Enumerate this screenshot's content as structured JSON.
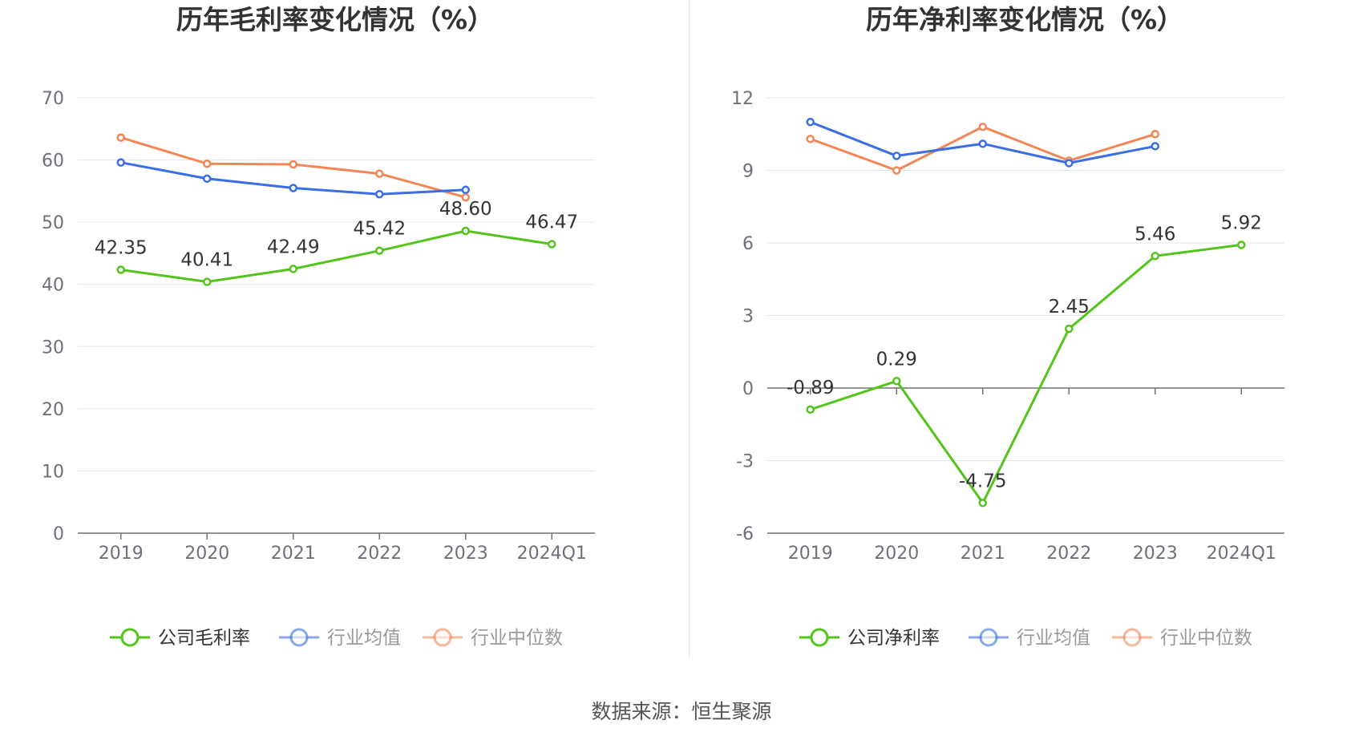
{
  "chart_data": [
    {
      "type": "line",
      "title": "历年毛利率变化情况（%）",
      "categories": [
        "2019",
        "2020",
        "2021",
        "2022",
        "2023",
        "2024Q1"
      ],
      "ylim": [
        0,
        70
      ],
      "yticks": [
        0,
        10,
        20,
        30,
        40,
        50,
        60,
        70
      ],
      "grid": true,
      "legend_position": "bottom",
      "series": [
        {
          "name": "公司毛利率",
          "values": [
            42.35,
            40.41,
            42.49,
            45.42,
            48.6,
            46.47
          ],
          "color": "#52c41a",
          "labels": [
            "42.35",
            "40.41",
            "42.49",
            "45.42",
            "48.60",
            "46.47"
          ]
        },
        {
          "name": "行业均值",
          "values": [
            59.6,
            57.0,
            55.5,
            54.5,
            55.2,
            null
          ],
          "color": "#3a6ee6"
        },
        {
          "name": "行业中位数",
          "values": [
            63.6,
            59.4,
            59.3,
            57.8,
            54.0,
            null
          ],
          "color": "#f48554"
        }
      ]
    },
    {
      "type": "line",
      "title": "历年净利率变化情况（%）",
      "categories": [
        "2019",
        "2020",
        "2021",
        "2022",
        "2023",
        "2024Q1"
      ],
      "ylim": [
        -6,
        12
      ],
      "yticks": [
        -6,
        -3,
        0,
        3,
        6,
        9,
        12
      ],
      "grid": true,
      "legend_position": "bottom",
      "series": [
        {
          "name": "公司净利率",
          "values": [
            -0.89,
            0.29,
            -4.75,
            2.45,
            5.46,
            5.92
          ],
          "color": "#52c41a",
          "labels": [
            "-0.89",
            "0.29",
            "-4.75",
            "2.45",
            "5.46",
            "5.92"
          ]
        },
        {
          "name": "行业均值",
          "values": [
            11.0,
            9.6,
            10.1,
            9.3,
            10.0,
            null
          ],
          "color": "#3a6ee6"
        },
        {
          "name": "行业中位数",
          "values": [
            10.3,
            9.0,
            10.8,
            9.4,
            10.5,
            null
          ],
          "color": "#f48554"
        }
      ]
    }
  ],
  "source": "数据来源：恒生聚源"
}
